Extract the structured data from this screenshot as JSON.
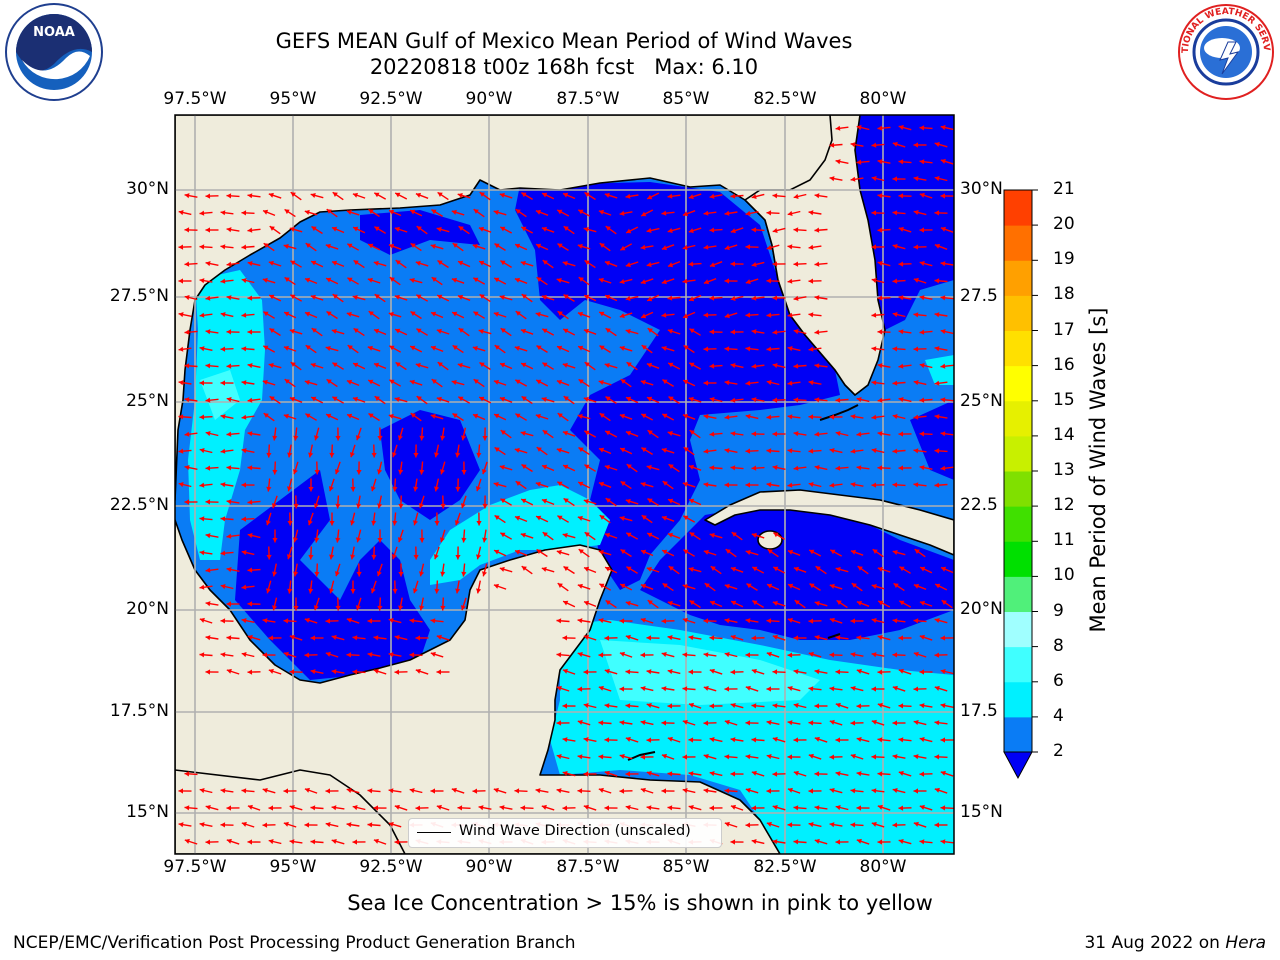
{
  "header": {
    "title_line1": "GEFS MEAN Gulf of Mexico Mean Period of Wind Waves",
    "title_line2": "20220818 t00z 168h fcst   Max: 6.10"
  },
  "logos": {
    "left": {
      "name": "noaa-logo",
      "text": "NOAA"
    },
    "right": {
      "name": "nws-logo",
      "text": "NATIONAL WEATHER SERVICE"
    }
  },
  "map": {
    "lon_labels": [
      "97.5°W",
      "95°W",
      "92.5°W",
      "90°W",
      "87.5°W",
      "85°W",
      "82.5°W",
      "80°W"
    ],
    "lat_labels_left": [
      "30°N",
      "27.5°N",
      "25°N",
      "22.5°N",
      "20°N",
      "17.5°N",
      "15°N"
    ],
    "lat_labels_right": [
      "30°N",
      "27.5",
      "25°N",
      "22.5",
      "20°N",
      "17.5",
      "15°N"
    ],
    "extent": {
      "lon_min": -98,
      "lon_max": -78.2,
      "lat_min": 14,
      "lat_max": 31.8
    },
    "colors": {
      "land": "#efecdc",
      "coast": "#000000",
      "grid": "#b0b0b0",
      "arrow": "#ff0000"
    }
  },
  "legend": {
    "label": "Wind Wave Direction (unscaled)"
  },
  "colorbar": {
    "label": "Mean Period of Wind Waves [s]",
    "ticks": [
      "2",
      "4",
      "6",
      "8",
      "9",
      "10",
      "11",
      "12",
      "13",
      "14",
      "15",
      "16",
      "17",
      "18",
      "19",
      "20",
      "21"
    ],
    "colors": [
      "#0a7cf5",
      "#00f0ff",
      "#40ffff",
      "#a0ffff",
      "#50f07a",
      "#00e000",
      "#40e000",
      "#80e000",
      "#c8f000",
      "#e6f000",
      "#ffff00",
      "#ffe000",
      "#ffc000",
      "#ffa000",
      "#ff7000",
      "#ff4000",
      "#ff1000"
    ],
    "under_color": "#0000f5"
  },
  "footer": {
    "sea_ice_note": "Sea Ice Concentration > 15% is shown in pink to yellow",
    "credit": "NCEP/EMC/Verification Post Processing Product Generation Branch",
    "date_prefix": "31 Aug 2022 on ",
    "machine": "Hera"
  }
}
